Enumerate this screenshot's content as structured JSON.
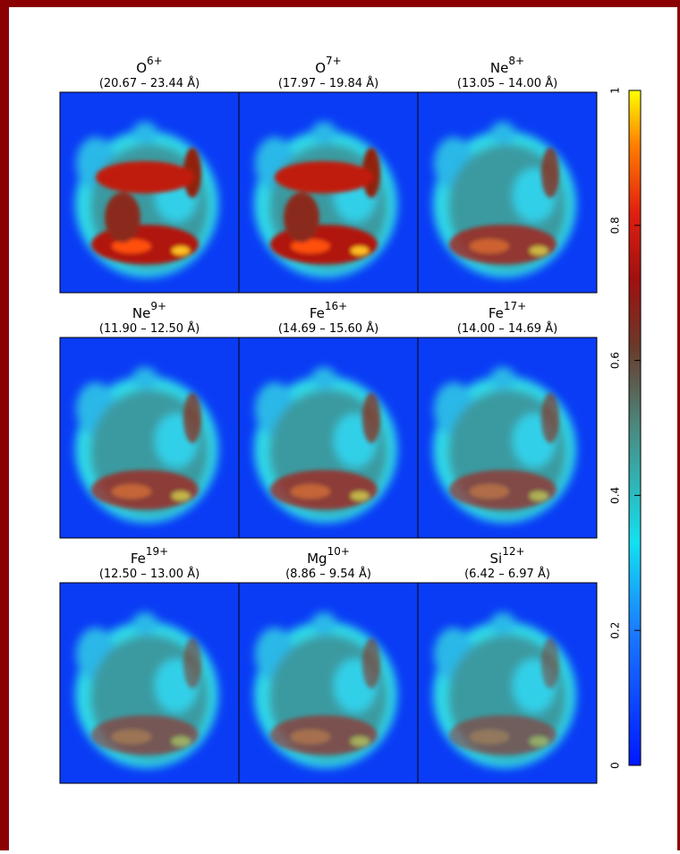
{
  "panels": [
    {
      "ion": "O",
      "charge": "6+",
      "range": "(20.67 – 23.44 Å)"
    },
    {
      "ion": "O",
      "charge": "7+",
      "range": "(17.97 – 19.84 Å)"
    },
    {
      "ion": "Ne",
      "charge": "8+",
      "range": "(13.05 – 14.00 Å)"
    },
    {
      "ion": "Ne",
      "charge": "9+",
      "range": "(11.90 – 12.50 Å)"
    },
    {
      "ion": "Fe",
      "charge": "16+",
      "range": "(14.69 – 15.60 Å)"
    },
    {
      "ion": "Fe",
      "charge": "17+",
      "range": "(14.00 – 14.69 Å)"
    },
    {
      "ion": "Fe",
      "charge": "19+",
      "range": "(12.50 – 13.00 Å)"
    },
    {
      "ion": "Mg",
      "charge": "10+",
      "range": "(8.86 – 9.54 Å)"
    },
    {
      "ion": "Si",
      "charge": "12+",
      "range": "(6.42 – 6.97 Å)"
    }
  ],
  "colorbar": {
    "lim": [
      0,
      1
    ],
    "ticks": [
      0,
      0.2,
      0.4,
      0.6,
      0.8,
      1
    ]
  }
}
